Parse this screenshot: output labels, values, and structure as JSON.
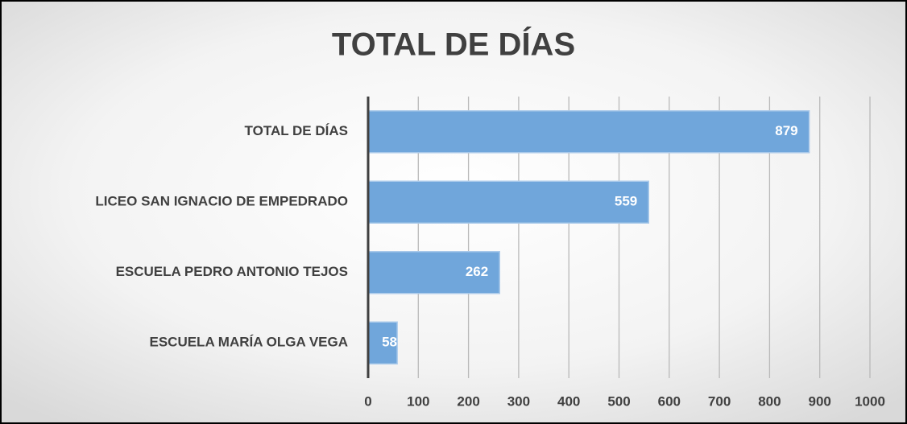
{
  "chart_data": {
    "type": "barh",
    "title": "TOTAL DE DÍAS",
    "categories": [
      "TOTAL DE DÍAS",
      "LICEO SAN IGNACIO DE EMPEDRADO",
      "ESCUELA PEDRO ANTONIO TEJOS",
      "ESCUELA MARÍA OLGA VEGA"
    ],
    "values": [
      879,
      559,
      262,
      58
    ],
    "color": "#70a6db",
    "xlim": [
      0,
      1000
    ],
    "xticks": [
      0,
      100,
      200,
      300,
      400,
      500,
      600,
      700,
      800,
      900,
      1000
    ],
    "grid": true
  }
}
